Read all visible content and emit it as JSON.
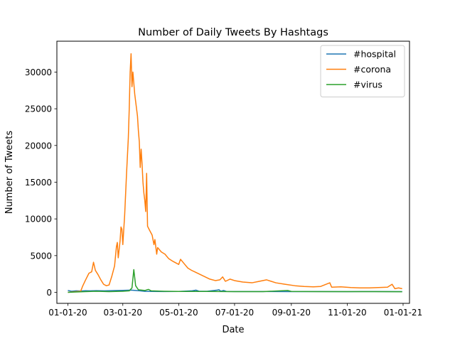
{
  "chart_data": {
    "type": "line",
    "title": "Number of Daily Tweets By Hashtags",
    "xlabel": "Date",
    "ylabel": "Number of Tweets",
    "xlim": [
      "2019-12-20",
      "2021-01-08"
    ],
    "ylim": [
      -1500,
      34200
    ],
    "x_ticks": [
      {
        "date": "2020-01-01",
        "label": "01-01-20"
      },
      {
        "date": "2020-03-01",
        "label": "03-01-20"
      },
      {
        "date": "2020-05-01",
        "label": "05-01-20"
      },
      {
        "date": "2020-07-01",
        "label": "07-01-20"
      },
      {
        "date": "2020-09-01",
        "label": "09-01-20"
      },
      {
        "date": "2020-11-01",
        "label": "11-01-20"
      },
      {
        "date": "2021-01-01",
        "label": "01-01-21"
      }
    ],
    "y_ticks": [
      0,
      5000,
      10000,
      15000,
      20000,
      25000,
      30000
    ],
    "grid": false,
    "legend_position": "top-right",
    "series": [
      {
        "name": "#hospital",
        "color": "#1f77b4",
        "points": [
          [
            "2020-01-01",
            250
          ],
          [
            "2020-01-05",
            150
          ],
          [
            "2020-01-10",
            200
          ],
          [
            "2020-01-15",
            180
          ],
          [
            "2020-01-20",
            220
          ],
          [
            "2020-01-25",
            200
          ],
          [
            "2020-02-01",
            230
          ],
          [
            "2020-02-10",
            210
          ],
          [
            "2020-02-20",
            240
          ],
          [
            "2020-03-01",
            260
          ],
          [
            "2020-03-10",
            300
          ],
          [
            "2020-03-20",
            200
          ],
          [
            "2020-03-25",
            130
          ],
          [
            "2020-04-01",
            120
          ],
          [
            "2020-04-15",
            110
          ],
          [
            "2020-05-01",
            120
          ],
          [
            "2020-05-15",
            200
          ],
          [
            "2020-05-20",
            300
          ],
          [
            "2020-05-23",
            160
          ],
          [
            "2020-06-01",
            140
          ],
          [
            "2020-06-12",
            300
          ],
          [
            "2020-06-14",
            350
          ],
          [
            "2020-06-16",
            150
          ],
          [
            "2020-06-19",
            260
          ],
          [
            "2020-06-22",
            120
          ],
          [
            "2020-07-01",
            110
          ],
          [
            "2020-08-01",
            110
          ],
          [
            "2020-09-01",
            100
          ],
          [
            "2020-10-01",
            110
          ],
          [
            "2020-11-01",
            100
          ],
          [
            "2020-12-01",
            110
          ],
          [
            "2020-12-31",
            100
          ]
        ]
      },
      {
        "name": "#corona",
        "color": "#ff7f0e",
        "points": [
          [
            "2020-01-01",
            0
          ],
          [
            "2020-01-05",
            50
          ],
          [
            "2020-01-10",
            100
          ],
          [
            "2020-01-15",
            150
          ],
          [
            "2020-01-17",
            800
          ],
          [
            "2020-01-20",
            1600
          ],
          [
            "2020-01-24",
            2600
          ],
          [
            "2020-01-27",
            2800
          ],
          [
            "2020-01-29",
            4100
          ],
          [
            "2020-01-31",
            3000
          ],
          [
            "2020-02-03",
            2400
          ],
          [
            "2020-02-06",
            1700
          ],
          [
            "2020-02-09",
            1100
          ],
          [
            "2020-02-12",
            900
          ],
          [
            "2020-02-15",
            1000
          ],
          [
            "2020-02-18",
            2200
          ],
          [
            "2020-02-21",
            3600
          ],
          [
            "2020-02-23",
            6200
          ],
          [
            "2020-02-24",
            6800
          ],
          [
            "2020-02-25",
            4700
          ],
          [
            "2020-02-27",
            7000
          ],
          [
            "2020-02-28",
            8900
          ],
          [
            "2020-02-29",
            8600
          ],
          [
            "2020-03-01",
            6500
          ],
          [
            "2020-03-03",
            10500
          ],
          [
            "2020-03-05",
            16000
          ],
          [
            "2020-03-07",
            21000
          ],
          [
            "2020-03-08",
            25000
          ],
          [
            "2020-03-09",
            30000
          ],
          [
            "2020-03-10",
            32500
          ],
          [
            "2020-03-11",
            28000
          ],
          [
            "2020-03-12",
            30000
          ],
          [
            "2020-03-13",
            28500
          ],
          [
            "2020-03-14",
            27000
          ],
          [
            "2020-03-15",
            26000
          ],
          [
            "2020-03-16",
            25000
          ],
          [
            "2020-03-17",
            24000
          ],
          [
            "2020-03-18",
            22000
          ],
          [
            "2020-03-19",
            20500
          ],
          [
            "2020-03-20",
            17000
          ],
          [
            "2020-03-21",
            19500
          ],
          [
            "2020-03-22",
            17500
          ],
          [
            "2020-03-23",
            15000
          ],
          [
            "2020-03-24",
            13500
          ],
          [
            "2020-03-25",
            12500
          ],
          [
            "2020-03-26",
            11000
          ],
          [
            "2020-03-27",
            16200
          ],
          [
            "2020-03-28",
            9000
          ],
          [
            "2020-03-30",
            8500
          ],
          [
            "2020-04-02",
            7800
          ],
          [
            "2020-04-04",
            6500
          ],
          [
            "2020-04-05",
            7200
          ],
          [
            "2020-04-07",
            5200
          ],
          [
            "2020-04-08",
            6100
          ],
          [
            "2020-04-12",
            5500
          ],
          [
            "2020-04-16",
            5200
          ],
          [
            "2020-04-20",
            4600
          ],
          [
            "2020-04-25",
            4200
          ],
          [
            "2020-05-01",
            3800
          ],
          [
            "2020-05-03",
            4500
          ],
          [
            "2020-05-07",
            3900
          ],
          [
            "2020-05-11",
            3300
          ],
          [
            "2020-05-15",
            3000
          ],
          [
            "2020-05-20",
            2700
          ],
          [
            "2020-05-25",
            2400
          ],
          [
            "2020-05-30",
            2100
          ],
          [
            "2020-06-04",
            1800
          ],
          [
            "2020-06-10",
            1600
          ],
          [
            "2020-06-15",
            1700
          ],
          [
            "2020-06-18",
            2100
          ],
          [
            "2020-06-21",
            1500
          ],
          [
            "2020-06-26",
            1800
          ],
          [
            "2020-07-01",
            1600
          ],
          [
            "2020-07-10",
            1400
          ],
          [
            "2020-07-20",
            1300
          ],
          [
            "2020-07-28",
            1500
          ],
          [
            "2020-08-05",
            1700
          ],
          [
            "2020-08-15",
            1300
          ],
          [
            "2020-08-25",
            1100
          ],
          [
            "2020-09-05",
            900
          ],
          [
            "2020-09-15",
            800
          ],
          [
            "2020-09-25",
            750
          ],
          [
            "2020-10-03",
            800
          ],
          [
            "2020-10-13",
            1300
          ],
          [
            "2020-10-15",
            700
          ],
          [
            "2020-10-25",
            750
          ],
          [
            "2020-11-05",
            650
          ],
          [
            "2020-11-15",
            600
          ],
          [
            "2020-11-25",
            600
          ],
          [
            "2020-12-05",
            650
          ],
          [
            "2020-12-15",
            700
          ],
          [
            "2020-12-20",
            1100
          ],
          [
            "2020-12-23",
            500
          ],
          [
            "2020-12-27",
            600
          ],
          [
            "2020-12-31",
            500
          ]
        ]
      },
      {
        "name": "#virus",
        "color": "#2ca02c",
        "points": [
          [
            "2020-01-01",
            0
          ],
          [
            "2020-01-10",
            50
          ],
          [
            "2020-01-20",
            100
          ],
          [
            "2020-02-01",
            150
          ],
          [
            "2020-02-15",
            100
          ],
          [
            "2020-03-01",
            150
          ],
          [
            "2020-03-08",
            200
          ],
          [
            "2020-03-11",
            600
          ],
          [
            "2020-03-13",
            3100
          ],
          [
            "2020-03-15",
            900
          ],
          [
            "2020-03-18",
            350
          ],
          [
            "2020-03-25",
            250
          ],
          [
            "2020-03-29",
            400
          ],
          [
            "2020-04-01",
            200
          ],
          [
            "2020-04-15",
            150
          ],
          [
            "2020-05-01",
            120
          ],
          [
            "2020-06-01",
            120
          ],
          [
            "2020-07-01",
            100
          ],
          [
            "2020-08-01",
            100
          ],
          [
            "2020-08-28",
            250
          ],
          [
            "2020-09-01",
            120
          ],
          [
            "2020-10-01",
            100
          ],
          [
            "2020-11-01",
            100
          ],
          [
            "2020-12-01",
            100
          ],
          [
            "2020-12-31",
            80
          ]
        ]
      }
    ]
  }
}
